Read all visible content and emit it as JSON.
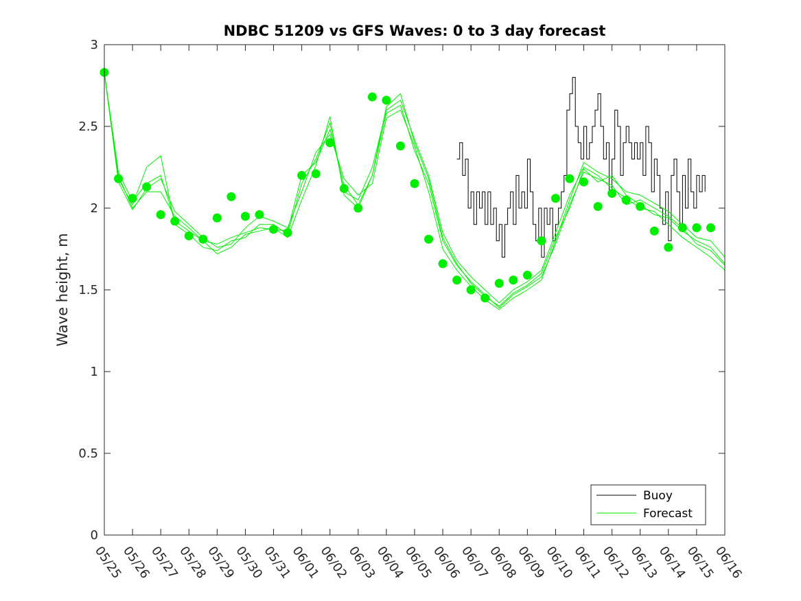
{
  "chart_data": {
    "type": "line",
    "title": "NDBC 51209 vs GFS Waves: 0 to 3 day forecast",
    "xlabel": "",
    "ylabel": "Wave height, m",
    "ylim": [
      0,
      3
    ],
    "yticks": [
      0,
      0.5,
      1,
      1.5,
      2,
      2.5,
      3
    ],
    "ytick_labels": [
      "0",
      "0.5",
      "1",
      "1.5",
      "2",
      "2.5",
      "3"
    ],
    "xlim_days": [
      0,
      22
    ],
    "xtick_labels": [
      "05/25",
      "05/26",
      "05/27",
      "05/28",
      "05/29",
      "05/30",
      "05/31",
      "06/01",
      "06/02",
      "06/03",
      "06/04",
      "06/05",
      "06/06",
      "06/07",
      "06/08",
      "06/09",
      "06/10",
      "06/11",
      "06/12",
      "06/13",
      "06/14",
      "06/15",
      "06/16"
    ],
    "legend": {
      "position": "bottom-right",
      "entries": [
        "Buoy",
        "Forecast"
      ]
    },
    "colors": {
      "buoy": "#000000",
      "forecast": "#00ee00",
      "axis": "#262626"
    },
    "series": [
      {
        "name": "Buoy",
        "style": "line",
        "color": "#000000",
        "x_days": [
          12.5,
          12.6,
          12.7,
          12.8,
          12.9,
          13.0,
          13.1,
          13.2,
          13.3,
          13.4,
          13.5,
          13.6,
          13.7,
          13.8,
          13.9,
          14.0,
          14.1,
          14.2,
          14.3,
          14.4,
          14.5,
          14.6,
          14.7,
          14.8,
          14.9,
          15.0,
          15.1,
          15.2,
          15.3,
          15.4,
          15.5,
          15.6,
          15.7,
          15.8,
          15.9,
          16.0,
          16.1,
          16.2,
          16.3,
          16.4,
          16.5,
          16.6,
          16.7,
          16.8,
          16.9,
          17.0,
          17.1,
          17.2,
          17.3,
          17.4,
          17.5,
          17.6,
          17.7,
          17.8,
          17.9,
          18.0,
          18.1,
          18.2,
          18.3,
          18.4,
          18.5,
          18.6,
          18.7,
          18.8,
          18.9,
          19.0,
          19.1,
          19.2,
          19.3,
          19.4,
          19.5,
          19.6,
          19.7,
          19.8,
          19.9,
          20.0,
          20.1,
          20.2,
          20.3,
          20.4,
          20.5,
          20.6,
          20.7,
          20.8,
          20.9,
          21.0,
          21.1,
          21.2,
          21.3
        ],
        "values": [
          2.3,
          2.4,
          2.2,
          2.3,
          2.0,
          2.1,
          1.9,
          2.1,
          2.0,
          2.1,
          1.9,
          2.1,
          1.9,
          2.0,
          1.8,
          1.9,
          1.7,
          1.9,
          2.0,
          2.1,
          1.9,
          2.2,
          2.0,
          2.1,
          2.0,
          2.3,
          2.1,
          1.9,
          1.8,
          2.0,
          1.7,
          2.0,
          1.9,
          2.0,
          1.8,
          1.9,
          2.0,
          2.1,
          2.2,
          2.6,
          2.7,
          2.8,
          2.5,
          2.4,
          2.3,
          2.5,
          2.3,
          2.4,
          2.5,
          2.6,
          2.7,
          2.5,
          2.3,
          2.4,
          2.1,
          2.3,
          2.6,
          2.5,
          2.2,
          2.4,
          2.5,
          2.4,
          2.3,
          2.4,
          2.3,
          2.4,
          2.2,
          2.5,
          2.4,
          2.1,
          2.3,
          2.2,
          2.0,
          1.9,
          2.1,
          1.8,
          2.2,
          2.3,
          2.1,
          1.9,
          2.2,
          2.0,
          2.3,
          2.1,
          2.0,
          2.2,
          2.1,
          2.2,
          2.1
        ]
      },
      {
        "name": "Forecast",
        "style": "line",
        "color": "#00ee00",
        "runs": [
          {
            "x_days": [
              0,
              0.5,
              1,
              1.5,
              2,
              2.5,
              3,
              3.5,
              4,
              4.5,
              5,
              5.5,
              6,
              6.5,
              7,
              7.5,
              8,
              8.5,
              9,
              9.5,
              10,
              10.5,
              11,
              11.5,
              12,
              12.5,
              13,
              13.5,
              14,
              14.5,
              15,
              15.5,
              16,
              16.5,
              17,
              17.5,
              18,
              18.5,
              19,
              19.5,
              20,
              20.5,
              21,
              21.5,
              22
            ],
            "values": [
              2.83,
              2.2,
              2.0,
              2.1,
              2.1,
              1.95,
              1.88,
              1.8,
              1.78,
              1.82,
              1.85,
              1.88,
              1.87,
              1.86,
              2.2,
              2.28,
              2.48,
              2.14,
              2.02,
              2.2,
              2.58,
              2.63,
              2.35,
              2.15,
              1.8,
              1.65,
              1.55,
              1.47,
              1.39,
              1.47,
              1.52,
              1.58,
              1.78,
              2.02,
              2.22,
              2.18,
              2.14,
              2.02,
              2.05,
              2.0,
              1.95,
              1.88,
              1.78,
              1.74,
              1.65
            ]
          },
          {
            "x_days": [
              0,
              0.5,
              1,
              1.5,
              2,
              2.5,
              3,
              3.5,
              4,
              4.5,
              5,
              5.5,
              6,
              6.5,
              7,
              7.5,
              8,
              8.5,
              9,
              9.5,
              10,
              10.5,
              11,
              11.5,
              12,
              12.5,
              13,
              13.5,
              14,
              14.5,
              15,
              15.5,
              16,
              16.5,
              17,
              17.5,
              18,
              18.5,
              19,
              19.5,
              20,
              20.5,
              21,
              21.5,
              22
            ],
            "values": [
              2.83,
              2.18,
              2.02,
              2.25,
              2.32,
              1.9,
              1.84,
              1.76,
              1.74,
              1.8,
              1.82,
              1.9,
              1.9,
              1.84,
              2.15,
              2.3,
              2.52,
              2.1,
              2.05,
              2.25,
              2.6,
              2.66,
              2.42,
              2.2,
              1.85,
              1.68,
              1.58,
              1.5,
              1.42,
              1.5,
              1.55,
              1.62,
              1.85,
              2.08,
              2.25,
              2.2,
              2.12,
              2.06,
              2.0,
              1.98,
              1.9,
              1.82,
              1.76,
              1.7,
              1.62
            ]
          },
          {
            "x_days": [
              0,
              0.5,
              1,
              1.5,
              2,
              2.5,
              3,
              3.5,
              4,
              4.5,
              5,
              5.5,
              6,
              6.5,
              7,
              7.5,
              8,
              8.5,
              9,
              9.5,
              10,
              10.5,
              11,
              11.5,
              12,
              12.5,
              13,
              13.5,
              14,
              14.5,
              15,
              15.5,
              16,
              16.5,
              17,
              17.5,
              18,
              18.5,
              19,
              19.5,
              20,
              20.5,
              21,
              21.5,
              22
            ],
            "values": [
              2.83,
              2.16,
              1.99,
              2.12,
              2.18,
              1.98,
              1.9,
              1.82,
              1.76,
              1.78,
              1.88,
              1.95,
              1.92,
              1.88,
              2.1,
              2.34,
              2.45,
              2.18,
              2.08,
              2.15,
              2.55,
              2.6,
              2.38,
              2.1,
              1.75,
              1.62,
              1.52,
              1.44,
              1.38,
              1.45,
              1.5,
              1.56,
              1.8,
              2.05,
              2.28,
              2.22,
              2.18,
              2.1,
              2.08,
              2.03,
              1.98,
              1.9,
              1.82,
              1.8,
              1.7
            ]
          },
          {
            "x_days": [
              0,
              0.5,
              1,
              1.5,
              2,
              2.5,
              3,
              3.5,
              4,
              4.5,
              5,
              5.5,
              6,
              6.5,
              7,
              7.5,
              8,
              8.5,
              9,
              9.5,
              10,
              10.5,
              11,
              11.5,
              12,
              12.5,
              13,
              13.5,
              14,
              14.5,
              15,
              15.5,
              16,
              16.5,
              17,
              17.5,
              18,
              18.5,
              19,
              19.5,
              20,
              20.5,
              21,
              21.5,
              22
            ],
            "values": [
              2.83,
              2.22,
              2.04,
              2.15,
              2.2,
              1.92,
              1.86,
              1.8,
              1.72,
              1.76,
              1.84,
              1.86,
              1.88,
              1.82,
              2.05,
              2.26,
              2.56,
              2.08,
              2.0,
              2.2,
              2.62,
              2.7,
              2.4,
              2.18,
              1.82,
              1.66,
              1.54,
              1.46,
              1.4,
              1.48,
              1.53,
              1.6,
              1.82,
              2.0,
              2.24,
              2.16,
              2.2,
              2.08,
              2.02,
              1.96,
              1.94,
              1.86,
              1.8,
              1.76,
              1.66
            ]
          }
        ]
      },
      {
        "name": "Forecast markers",
        "style": "markers",
        "color": "#00ee00",
        "x_days": [
          0,
          0.5,
          1,
          1.5,
          2,
          2.5,
          3,
          3.5,
          4,
          4.5,
          5,
          5.5,
          6,
          6.5,
          7,
          7.5,
          8,
          8.5,
          9,
          9.5,
          10,
          10.5,
          11,
          11.5,
          12,
          12.5,
          13,
          13.5,
          14,
          14.5,
          15,
          15.5,
          16,
          16.5,
          17,
          17.5,
          18,
          18.5,
          19,
          19.5,
          20,
          20.5,
          21,
          21.5
        ],
        "values": [
          2.83,
          2.18,
          2.06,
          2.13,
          1.96,
          1.92,
          1.83,
          1.81,
          1.94,
          2.07,
          1.95,
          1.96,
          1.87,
          1.85,
          2.2,
          2.21,
          2.4,
          2.12,
          2.0,
          2.68,
          2.66,
          2.38,
          2.15,
          1.81,
          1.66,
          1.56,
          1.5,
          1.45,
          1.54,
          1.56,
          1.59,
          1.8,
          2.06,
          2.18,
          2.16,
          2.01,
          2.09,
          2.05,
          2.01,
          1.86,
          1.76,
          1.88,
          1.88,
          1.88
        ]
      }
    ]
  }
}
